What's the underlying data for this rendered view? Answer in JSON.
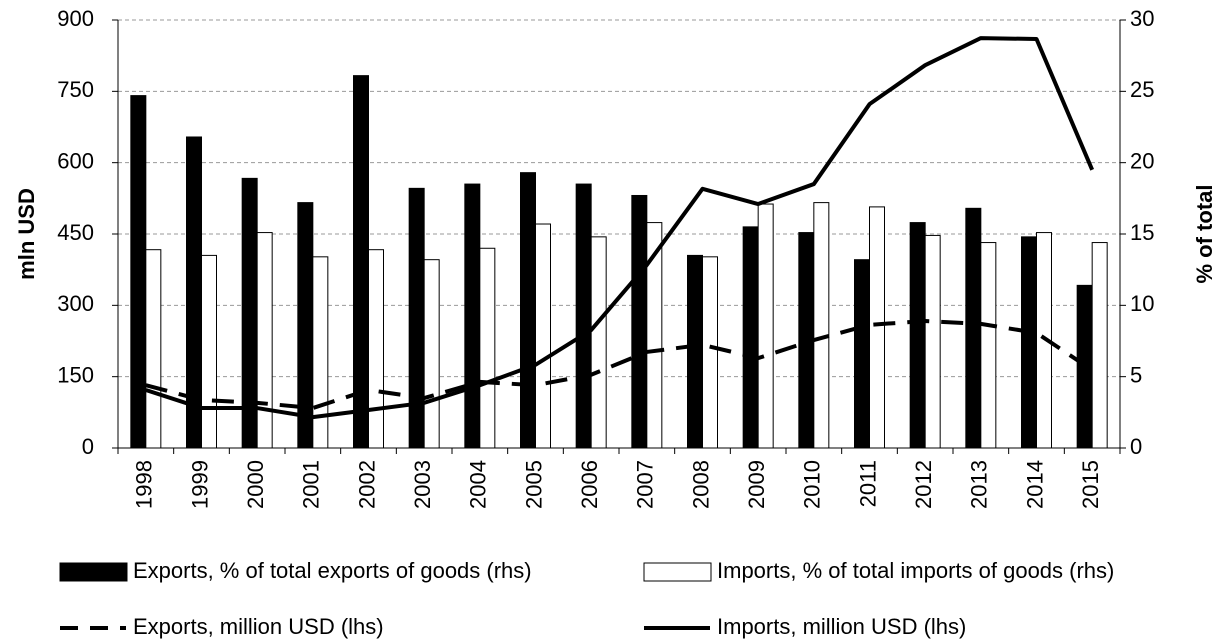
{
  "chart_data": {
    "type": "bar-line",
    "categories": [
      "1998",
      "1999",
      "2000",
      "2001",
      "2002",
      "2003",
      "2004",
      "2005",
      "2006",
      "2007",
      "2008",
      "2009",
      "2010",
      "2011",
      "2012",
      "2013",
      "2014",
      "2015"
    ],
    "y_label": "mln USD",
    "y2_label": "% of total",
    "ylim": [
      0,
      900
    ],
    "yticks": [
      0,
      150,
      300,
      450,
      600,
      750,
      900
    ],
    "y2lim": [
      0,
      30
    ],
    "y2ticks": [
      0,
      5,
      10,
      15,
      20,
      25,
      30
    ],
    "grid": true,
    "series": [
      {
        "name": "Exports, % of total exports of goods (rhs)",
        "type": "bar",
        "axis": "y2",
        "color": "#000000",
        "values": [
          24.7,
          21.8,
          18.9,
          17.2,
          26.1,
          18.2,
          18.5,
          19.3,
          18.5,
          17.7,
          13.5,
          15.5,
          15.1,
          13.2,
          15.8,
          16.8,
          14.8,
          11.4
        ]
      },
      {
        "name": "Imports, % of total imports of goods (rhs)",
        "type": "bar",
        "axis": "y2",
        "color": "#ffffff",
        "values": [
          13.9,
          13.5,
          15.1,
          13.4,
          13.9,
          13.2,
          14.0,
          15.7,
          14.8,
          15.8,
          13.4,
          17.1,
          17.2,
          16.9,
          14.9,
          14.4,
          15.1,
          14.4
        ]
      },
      {
        "name": "Exports, million USD (lhs)",
        "type": "line",
        "dash": true,
        "color": "#000000",
        "values": [
          132,
          101,
          95,
          84,
          122,
          105,
          139,
          132,
          154,
          202,
          217,
          189,
          227,
          259,
          267,
          261,
          242,
          164
        ]
      },
      {
        "name": "Imports, million USD (lhs)",
        "type": "line",
        "dash": false,
        "color": "#000000",
        "values": [
          122,
          84,
          84,
          65,
          80,
          95,
          132,
          175,
          248,
          385,
          545,
          513,
          555,
          723,
          805,
          862,
          860,
          585
        ]
      }
    ]
  }
}
